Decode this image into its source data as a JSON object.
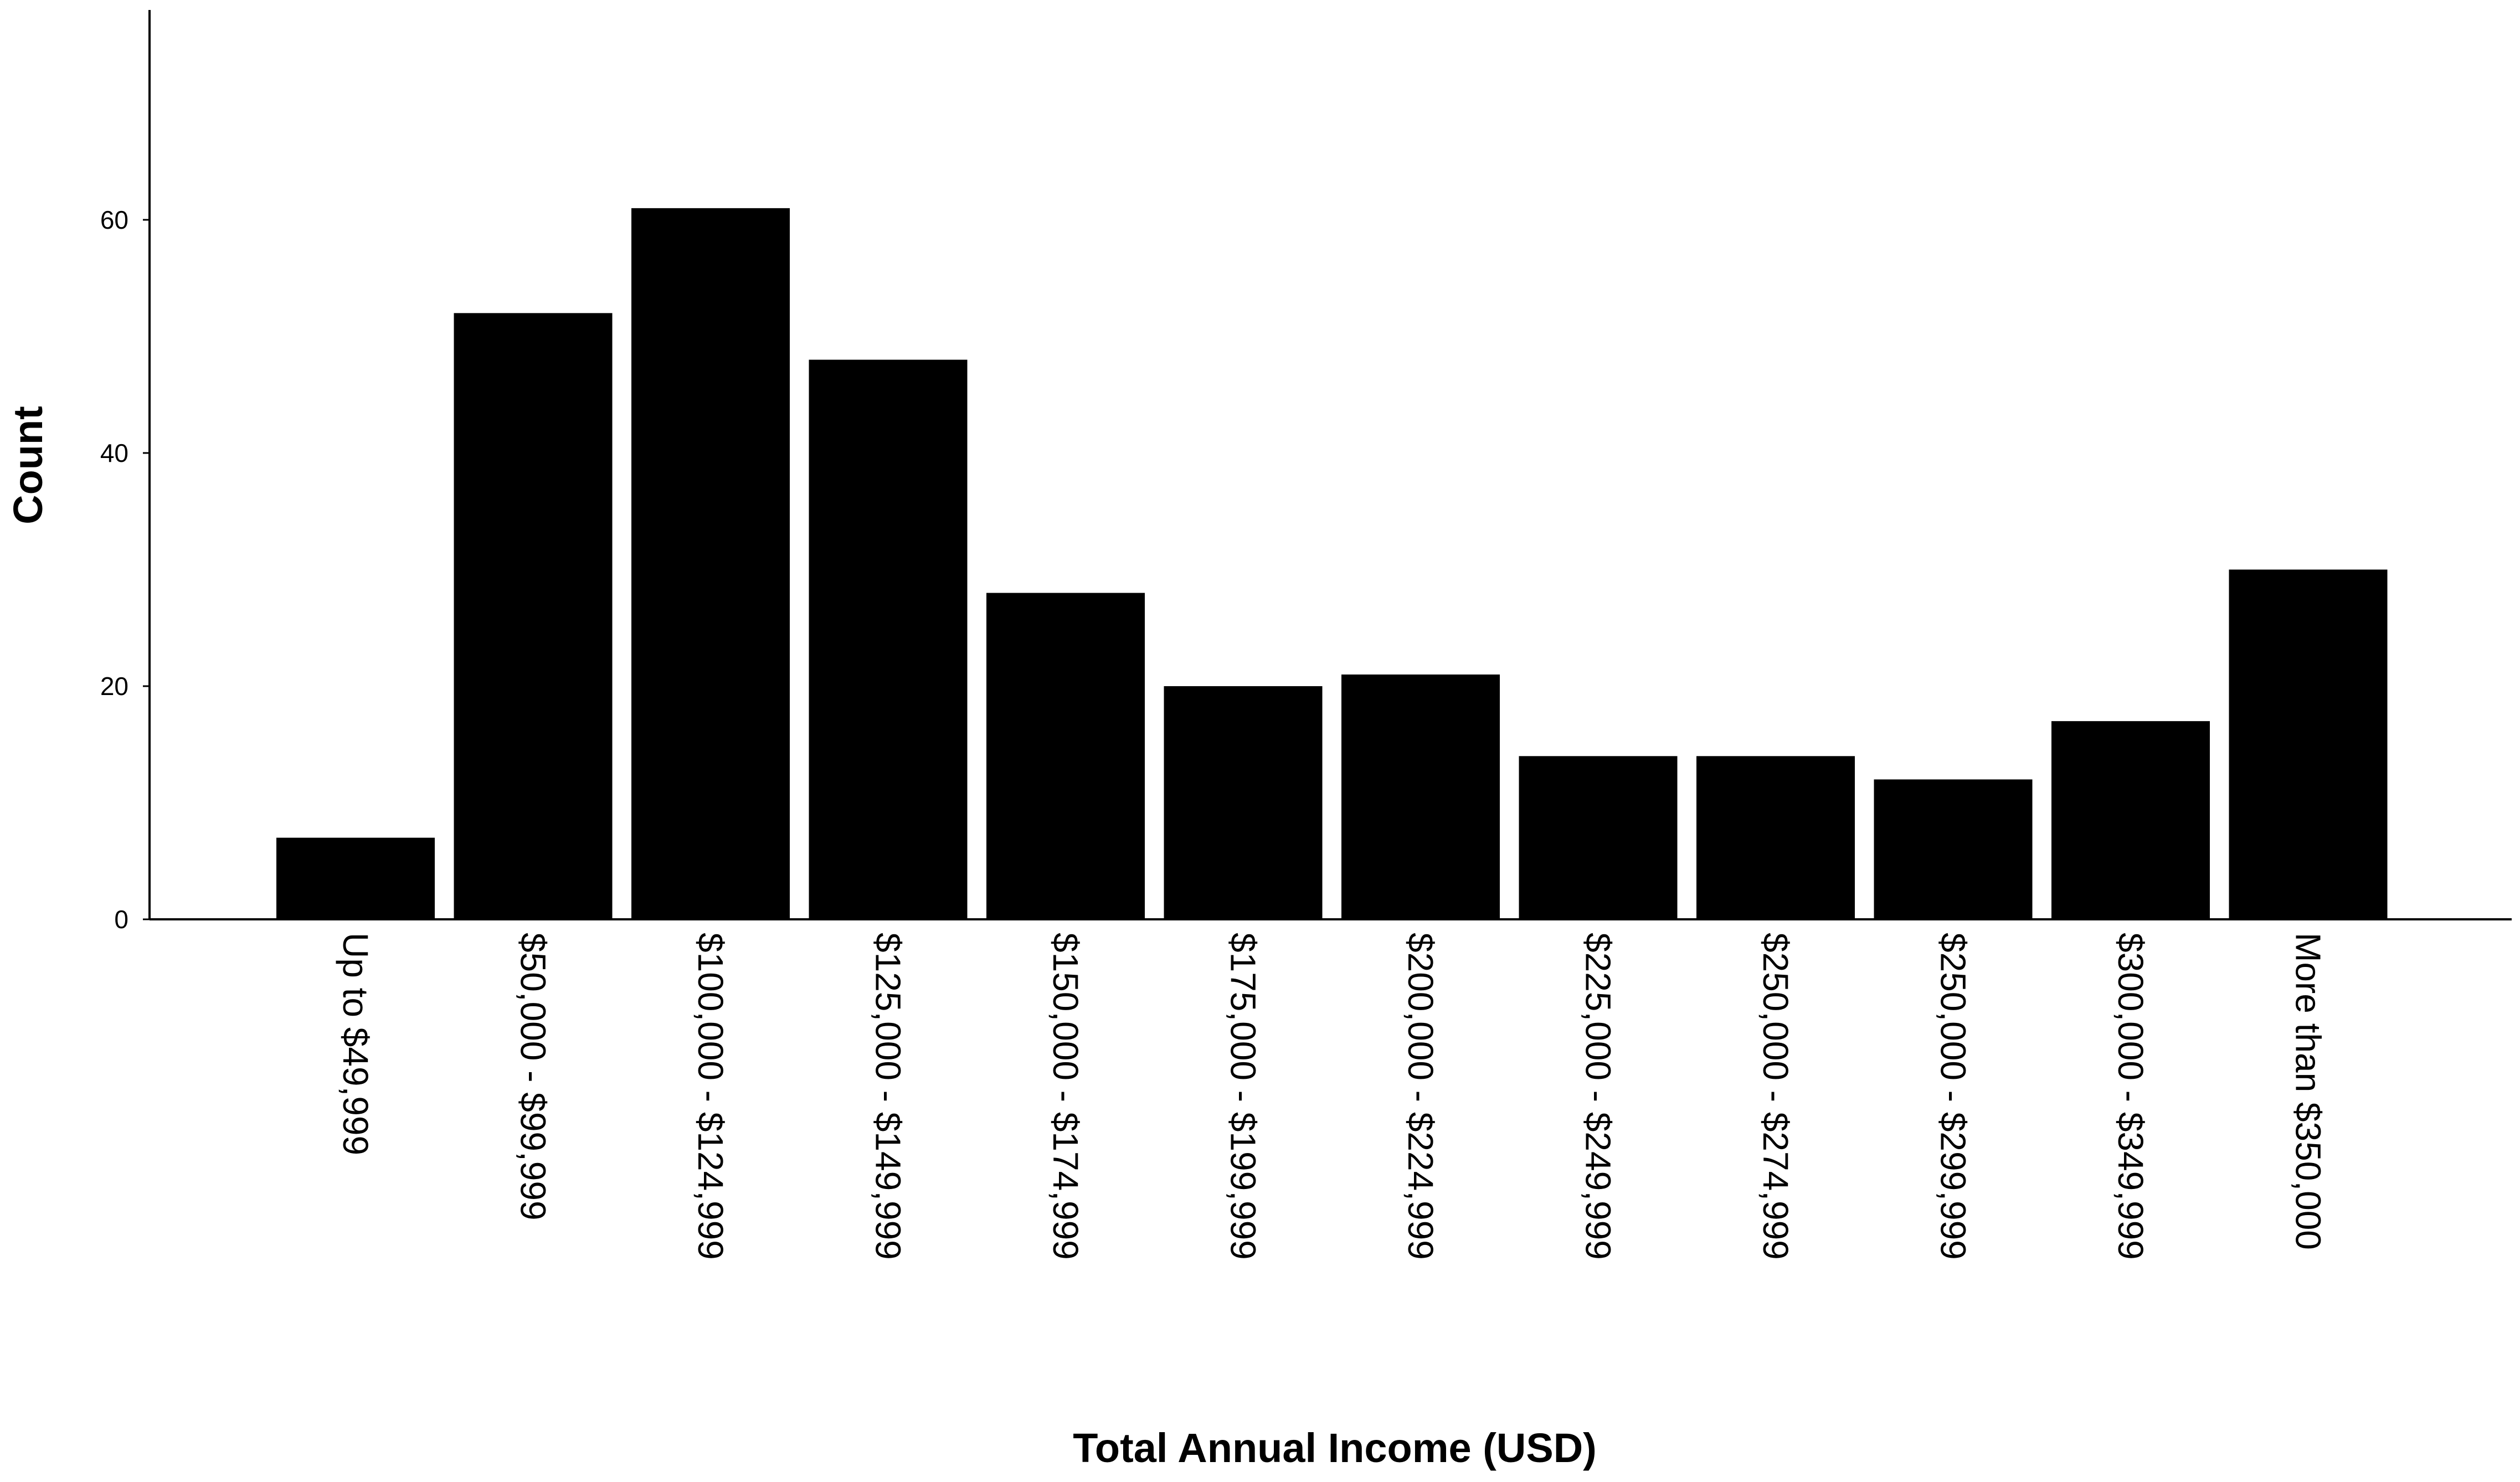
{
  "chart_data": {
    "type": "bar",
    "title": "",
    "xlabel": "Total Annual Income (USD)",
    "ylabel": "Count",
    "categories": [
      "Up to $49,999",
      "$50,000 - $99,999",
      "$100,000 - $124,999",
      "$125,000 - $149,999",
      "$150,000 - $174,999",
      "$175,000 - $199,999",
      "$200,000 - $224,999",
      "$225,000 - $249,999",
      "$250,000 - $274,999",
      "$250,000 - $299,999",
      "$300,000 - $349,999",
      "More than $350,000"
    ],
    "values": [
      7,
      52,
      61,
      48,
      28,
      20,
      21,
      14,
      14,
      12,
      17,
      30
    ],
    "ylim": [
      0,
      78
    ],
    "yticks": [
      0,
      20,
      40,
      60
    ],
    "grid": false,
    "bar_color": "#000000"
  }
}
